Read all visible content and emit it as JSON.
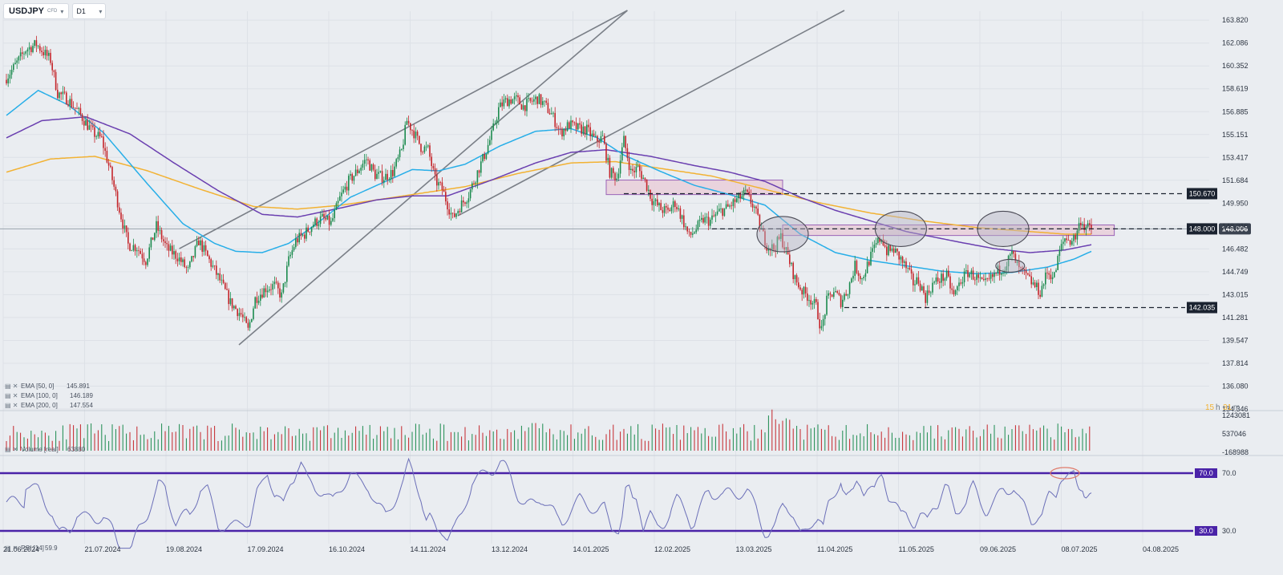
{
  "header": {
    "symbol": "USDJPY",
    "instrument_type": "CFD",
    "timeframe": "D1"
  },
  "countdown": {
    "hours": "15",
    "h_unit": "h",
    "minutes": "31",
    "m_unit": "m"
  },
  "colors": {
    "background": "#eaedf1",
    "up_candle": "#1b8a4e",
    "down_candle": "#c4252a",
    "ema50": "#27aee8",
    "ema100": "#6a3fb0",
    "ema200": "#f2b233",
    "channel": "#7a7f87",
    "rsi_line": "#6b6fb8",
    "rsi_band": "#4a23a8",
    "zone_fill": "#e8c9d6",
    "zone_border": "#9a63b8"
  },
  "chart_data": {
    "type": "candlestick",
    "symbol": "USDJPY",
    "timeframe": "D1",
    "ylim": [
      134.346,
      164.5
    ],
    "y_ticks": [
      "163.820",
      "162.086",
      "160.352",
      "158.619",
      "156.885",
      "155.151",
      "153.417",
      "151.684",
      "149.950",
      "148.216",
      "146.482",
      "144.749",
      "143.015",
      "141.281",
      "139.547",
      "137.814",
      "136.080",
      "134.346"
    ],
    "x_ticks": [
      "21.06.2024",
      "21.07.2024",
      "19.08.2024",
      "17.09.2024",
      "16.10.2024",
      "14.11.2024",
      "13.12.2024",
      "14.01.2025",
      "12.02.2025",
      "13.03.2025",
      "11.04.2025",
      "11.05.2025",
      "09.06.2025",
      "08.07.2025",
      "04.08.2025"
    ],
    "current_price": "148.006",
    "price_levels": [
      {
        "label": "150.670",
        "value": 150.67,
        "style": "dashed"
      },
      {
        "label": "148.000",
        "value": 148.0,
        "style": "dashed"
      },
      {
        "label": "142.035",
        "value": 142.035,
        "style": "dashed"
      }
    ],
    "anchors": [
      [
        0,
        159.3
      ],
      [
        5,
        160.2
      ],
      [
        12,
        161.6
      ],
      [
        18,
        162.0
      ],
      [
        22,
        161.4
      ],
      [
        26,
        160.8
      ],
      [
        30,
        158.3
      ],
      [
        36,
        157.8
      ],
      [
        42,
        156.8
      ],
      [
        50,
        155.3
      ],
      [
        55,
        154.8
      ],
      [
        60,
        152.3
      ],
      [
        65,
        149.5
      ],
      [
        70,
        146.8
      ],
      [
        75,
        146.6
      ],
      [
        80,
        145.6
      ],
      [
        86,
        148.2
      ],
      [
        92,
        146.5
      ],
      [
        98,
        145.9
      ],
      [
        104,
        144.8
      ],
      [
        110,
        147.1
      ],
      [
        116,
        145.6
      ],
      [
        122,
        144.1
      ],
      [
        128,
        142.4
      ],
      [
        134,
        141.5
      ],
      [
        138,
        140.3
      ],
      [
        142,
        142.7
      ],
      [
        148,
        143.5
      ],
      [
        153,
        143.7
      ],
      [
        157,
        142.9
      ],
      [
        161,
        145.6
      ],
      [
        165,
        147.1
      ],
      [
        170,
        147.6
      ],
      [
        175,
        148.4
      ],
      [
        180,
        148.8
      ],
      [
        185,
        148.4
      ],
      [
        190,
        150.3
      ],
      [
        195,
        151.6
      ],
      [
        200,
        152.4
      ],
      [
        205,
        153.3
      ],
      [
        210,
        152.1
      ],
      [
        215,
        151.9
      ],
      [
        220,
        152.3
      ],
      [
        225,
        153.9
      ],
      [
        228,
        156.2
      ],
      [
        232,
        155.3
      ],
      [
        236,
        154.2
      ],
      [
        240,
        154.0
      ],
      [
        244,
        151.7
      ],
      [
        248,
        151.0
      ],
      [
        254,
        148.8
      ],
      [
        258,
        149.7
      ],
      [
        263,
        150.6
      ],
      [
        268,
        152.3
      ],
      [
        272,
        153.6
      ],
      [
        276,
        155.1
      ],
      [
        280,
        157.1
      ],
      [
        283,
        157.6
      ],
      [
        286,
        157.8
      ],
      [
        290,
        157.8
      ],
      [
        294,
        157.3
      ],
      [
        298,
        157.6
      ],
      [
        302,
        157.9
      ],
      [
        306,
        157.4
      ],
      [
        310,
        156.7
      ],
      [
        315,
        155.3
      ],
      [
        320,
        155.9
      ],
      [
        325,
        155.6
      ],
      [
        330,
        155.5
      ],
      [
        335,
        154.7
      ],
      [
        339,
        154.9
      ],
      [
        343,
        152.3
      ],
      [
        347,
        151.9
      ],
      [
        351,
        154.7
      ],
      [
        355,
        152.3
      ],
      [
        359,
        152.6
      ],
      [
        363,
        151.6
      ],
      [
        367,
        150.2
      ],
      [
        372,
        149.5
      ],
      [
        376,
        149.3
      ],
      [
        380,
        150.0
      ],
      [
        384,
        148.8
      ],
      [
        388,
        147.4
      ],
      [
        392,
        148.0
      ],
      [
        396,
        148.7
      ],
      [
        400,
        148.6
      ],
      [
        405,
        149.3
      ],
      [
        410,
        149.6
      ],
      [
        415,
        150.2
      ],
      [
        420,
        150.7
      ],
      [
        425,
        149.6
      ],
      [
        428,
        148.2
      ],
      [
        432,
        146.8
      ],
      [
        436,
        146.5
      ],
      [
        440,
        147.4
      ],
      [
        444,
        145.9
      ],
      [
        448,
        144.2
      ],
      [
        452,
        143.3
      ],
      [
        456,
        142.8
      ],
      [
        460,
        142.1
      ],
      [
        463,
        140.3
      ],
      [
        466,
        142.5
      ],
      [
        470,
        143.3
      ],
      [
        474,
        142.5
      ],
      [
        478,
        143.4
      ],
      [
        482,
        145.2
      ],
      [
        486,
        144.2
      ],
      [
        490,
        145.6
      ],
      [
        494,
        146.8
      ],
      [
        497,
        147.4
      ],
      [
        500,
        146.3
      ],
      [
        504,
        146.4
      ],
      [
        508,
        145.7
      ],
      [
        512,
        144.8
      ],
      [
        515,
        143.9
      ],
      [
        518,
        144.1
      ],
      [
        522,
        142.8
      ],
      [
        526,
        143.8
      ],
      [
        530,
        144.2
      ],
      [
        534,
        144.4
      ],
      [
        538,
        142.9
      ],
      [
        542,
        144.1
      ],
      [
        546,
        144.7
      ],
      [
        550,
        144.4
      ],
      [
        555,
        143.7
      ],
      [
        559,
        144.2
      ],
      [
        563,
        144.8
      ],
      [
        567,
        145.2
      ],
      [
        571,
        146.1
      ],
      [
        575,
        144.9
      ],
      [
        579,
        144.4
      ],
      [
        583,
        143.8
      ],
      [
        587,
        143.2
      ],
      [
        591,
        144.7
      ],
      [
        595,
        144.4
      ],
      [
        598,
        146.3
      ],
      [
        601,
        147.3
      ],
      [
        604,
        147.1
      ],
      [
        607,
        147.4
      ],
      [
        610,
        148.7
      ],
      [
        612,
        148.2
      ],
      [
        615,
        148.0
      ]
    ],
    "ema50_anchors": [
      [
        0,
        156.6
      ],
      [
        18,
        158.5
      ],
      [
        35,
        157.4
      ],
      [
        55,
        155.3
      ],
      [
        80,
        151.4
      ],
      [
        100,
        148.4
      ],
      [
        118,
        146.9
      ],
      [
        130,
        146.3
      ],
      [
        145,
        146.2
      ],
      [
        160,
        146.9
      ],
      [
        175,
        148.3
      ],
      [
        195,
        150.4
      ],
      [
        215,
        151.6
      ],
      [
        230,
        152.5
      ],
      [
        245,
        152.4
      ],
      [
        260,
        152.9
      ],
      [
        280,
        154.3
      ],
      [
        300,
        155.4
      ],
      [
        320,
        155.6
      ],
      [
        335,
        154.9
      ],
      [
        350,
        153.6
      ],
      [
        370,
        152.4
      ],
      [
        390,
        151.3
      ],
      [
        410,
        150.6
      ],
      [
        430,
        149.8
      ],
      [
        450,
        147.6
      ],
      [
        470,
        146.2
      ],
      [
        490,
        145.6
      ],
      [
        510,
        145.2
      ],
      [
        530,
        144.8
      ],
      [
        550,
        144.6
      ],
      [
        570,
        144.7
      ],
      [
        590,
        145.1
      ],
      [
        605,
        145.7
      ],
      [
        615,
        146.3
      ]
    ],
    "ema100_anchors": [
      [
        0,
        154.9
      ],
      [
        20,
        156.2
      ],
      [
        45,
        156.5
      ],
      [
        70,
        155.2
      ],
      [
        95,
        153.0
      ],
      [
        120,
        150.9
      ],
      [
        145,
        149.1
      ],
      [
        165,
        148.9
      ],
      [
        190,
        149.6
      ],
      [
        210,
        150.2
      ],
      [
        230,
        150.5
      ],
      [
        250,
        150.5
      ],
      [
        275,
        151.7
      ],
      [
        300,
        153.0
      ],
      [
        320,
        153.8
      ],
      [
        340,
        154.0
      ],
      [
        365,
        153.5
      ],
      [
        390,
        152.8
      ],
      [
        410,
        152.3
      ],
      [
        430,
        151.6
      ],
      [
        450,
        150.4
      ],
      [
        470,
        149.4
      ],
      [
        490,
        148.6
      ],
      [
        510,
        147.8
      ],
      [
        540,
        147.0
      ],
      [
        560,
        146.5
      ],
      [
        580,
        146.2
      ],
      [
        600,
        146.4
      ],
      [
        615,
        146.8
      ]
    ],
    "ema200_anchors": [
      [
        0,
        152.3
      ],
      [
        25,
        153.3
      ],
      [
        50,
        153.5
      ],
      [
        80,
        152.4
      ],
      [
        110,
        151.0
      ],
      [
        140,
        149.7
      ],
      [
        165,
        149.5
      ],
      [
        190,
        149.8
      ],
      [
        220,
        150.4
      ],
      [
        260,
        151.2
      ],
      [
        290,
        152.2
      ],
      [
        320,
        153.0
      ],
      [
        345,
        153.1
      ],
      [
        370,
        152.6
      ],
      [
        400,
        152.0
      ],
      [
        430,
        151.0
      ],
      [
        460,
        150.0
      ],
      [
        490,
        149.2
      ],
      [
        520,
        148.6
      ],
      [
        550,
        148.1
      ],
      [
        580,
        147.8
      ],
      [
        600,
        147.6
      ],
      [
        615,
        147.6
      ]
    ],
    "channel_lines": [
      {
        "from": [
          128,
          139.8
        ],
        "to": [
          330,
          164.0
        ]
      },
      {
        "from": [
          128,
          146.4
        ],
        "to": [
          330,
          164.0
        ]
      }
    ],
    "indicators": {
      "ema50": {
        "label": "EMA [50, 0]",
        "value": "145.891"
      },
      "ema100": {
        "label": "EMA [100, 0]",
        "value": "146.189"
      },
      "ema200": {
        "label": "EMA [200, 0]",
        "value": "147.554"
      }
    },
    "volume": {
      "label": "Volume [real]",
      "value": "63880",
      "y_ticks": [
        "1243081",
        "537046",
        "-168988"
      ]
    },
    "rsi": {
      "label": "RSI [14]",
      "value": "59.9",
      "levels": [
        {
          "label": "70.0",
          "value": 70
        },
        {
          "label": "30.0",
          "value": 30
        }
      ],
      "axis_labels": [
        "70.0",
        "30.0"
      ]
    }
  }
}
